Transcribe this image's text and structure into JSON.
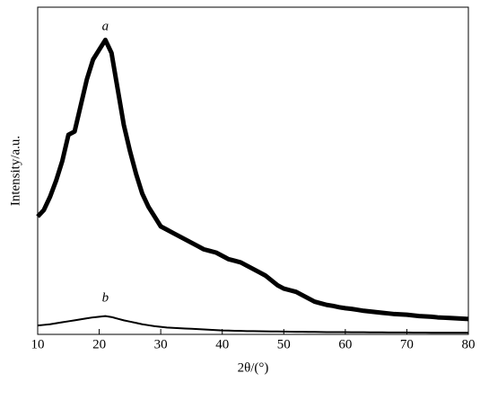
{
  "chart_data": {
    "type": "line",
    "xlabel": "2θ/(°)",
    "ylabel": "Intensity/a.u.",
    "x": [
      10,
      11,
      12,
      13,
      14,
      15,
      16,
      17,
      18,
      19,
      20,
      21,
      22,
      23,
      24,
      25,
      26,
      27,
      28,
      29,
      30,
      31,
      32,
      33,
      34,
      35,
      36,
      37,
      38,
      39,
      40,
      41,
      42,
      43,
      44,
      45,
      46,
      47,
      48,
      49,
      50,
      51,
      52,
      53,
      54,
      55,
      56,
      57,
      58,
      59,
      60,
      61,
      62,
      63,
      64,
      65,
      66,
      67,
      68,
      69,
      70,
      71,
      72,
      73,
      74,
      75,
      76,
      77,
      78,
      79,
      80
    ],
    "series": [
      {
        "name": "a",
        "color": "#000000",
        "values": [
          36,
          38,
          42,
          47,
          53,
          61,
          62,
          70,
          78,
          84,
          87,
          90,
          86,
          75,
          64,
          56,
          49,
          43,
          39,
          36,
          33,
          32,
          31,
          30,
          29,
          28,
          27,
          26,
          25.5,
          25,
          24,
          23,
          22.5,
          22,
          21,
          20,
          19,
          18,
          16.5,
          15,
          14,
          13.5,
          13,
          12,
          11,
          10,
          9.5,
          9,
          8.7,
          8.3,
          8,
          7.8,
          7.5,
          7.2,
          7,
          6.8,
          6.6,
          6.4,
          6.2,
          6.1,
          6,
          5.8,
          5.6,
          5.5,
          5.4,
          5.2,
          5.1,
          5,
          4.9,
          4.8,
          4.7
        ]
      },
      {
        "name": "b",
        "color": "#000000",
        "values": [
          2.7,
          2.9,
          3.1,
          3.4,
          3.7,
          4,
          4.3,
          4.6,
          4.9,
          5.2,
          5.4,
          5.6,
          5.3,
          4.8,
          4.3,
          3.9,
          3.5,
          3.1,
          2.8,
          2.5,
          2.3,
          2.1,
          2,
          1.9,
          1.8,
          1.7,
          1.6,
          1.5,
          1.4,
          1.3,
          1.2,
          1.15,
          1.1,
          1.05,
          1.0,
          0.98,
          0.95,
          0.92,
          0.9,
          0.88,
          0.85,
          0.83,
          0.8,
          0.78,
          0.76,
          0.74,
          0.72,
          0.7,
          0.69,
          0.68,
          0.67,
          0.66,
          0.65,
          0.64,
          0.63,
          0.62,
          0.61,
          0.6,
          0.59,
          0.58,
          0.57,
          0.56,
          0.55,
          0.54,
          0.53,
          0.52,
          0.52,
          0.51,
          0.51,
          0.5,
          0.5
        ]
      }
    ],
    "annotations": [
      {
        "text": "a",
        "x": 21,
        "y": 94
      },
      {
        "text": "b",
        "x": 21,
        "y": 11
      }
    ],
    "xlim": [
      10,
      80
    ],
    "xticks": [
      10,
      20,
      30,
      40,
      50,
      60,
      70,
      80
    ],
    "ylim": [
      0,
      100
    ],
    "grid": false
  }
}
